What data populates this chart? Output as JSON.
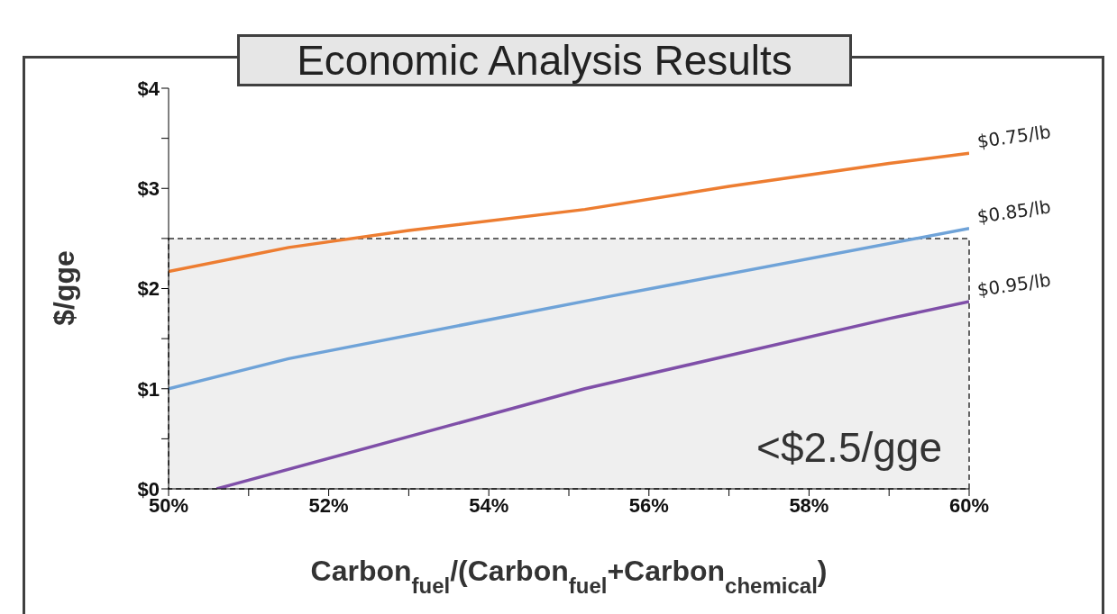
{
  "chart_data": {
    "type": "line",
    "title": "Economic Analysis Results",
    "xlabel": "Carbon$_{fuel}$/(Carbon$_{fuel}$+Carbon$_{chemical}$)",
    "ylabel": "$/gge",
    "series": [
      {
        "name": "$0.75/lb",
        "color": "#ed7d31",
        "x": [
          50,
          51.5,
          53,
          55.2,
          57,
          59,
          60
        ],
        "values": [
          2.17,
          2.41,
          2.58,
          2.79,
          3.02,
          3.25,
          3.35
        ]
      },
      {
        "name": "$0.85/lb",
        "color": "#6fa3d8",
        "x": [
          50,
          51.5,
          55.5,
          60
        ],
        "values": [
          1.0,
          1.3,
          1.92,
          2.6
        ]
      },
      {
        "name": "$0.95/lb",
        "color": "#7f4fa8",
        "x": [
          50.6,
          55.2,
          59,
          60
        ],
        "values": [
          0,
          1.0,
          1.7,
          1.87
        ]
      }
    ],
    "xlim": [
      50,
      60
    ],
    "xticks": [
      {
        "value": 50,
        "label": "50%"
      },
      {
        "value": 51,
        "label": null
      },
      {
        "value": 52,
        "label": "52%"
      },
      {
        "value": 53,
        "label": null
      },
      {
        "value": 54,
        "label": "54%"
      },
      {
        "value": 55,
        "label": null
      },
      {
        "value": 56,
        "label": "56%"
      },
      {
        "value": 57,
        "label": null
      },
      {
        "value": 58,
        "label": "58%"
      },
      {
        "value": 59,
        "label": null
      },
      {
        "value": 60,
        "label": "60%"
      }
    ],
    "ylim": [
      0,
      4
    ],
    "yticks": [
      {
        "value": 0,
        "label": "$0"
      },
      {
        "value": 0.5,
        "label": null
      },
      {
        "value": 1,
        "label": "$1"
      },
      {
        "value": 1.5,
        "label": null
      },
      {
        "value": 2,
        "label": "$2"
      },
      {
        "value": 2.5,
        "label": null
      },
      {
        "value": 3,
        "label": "$3"
      },
      {
        "value": 3.5,
        "label": null
      },
      {
        "value": 4,
        "label": "$4"
      }
    ],
    "bands": [
      {
        "axis": "y",
        "from": 0,
        "to": 2.5,
        "label": "<$2.5/gge",
        "color": "#efefef"
      }
    ],
    "grid": false,
    "marker": "none",
    "line_style": "solid"
  }
}
